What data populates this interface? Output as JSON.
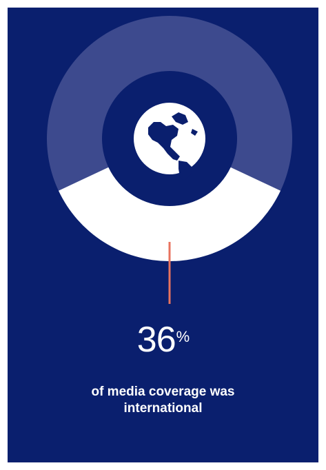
{
  "colors": {
    "background": "#0a1f6e",
    "track": "#3d4a8e",
    "highlight": "#ffffff",
    "indicator": "#e8735f",
    "globe": "#ffffff"
  },
  "icon": "globe-americas-icon",
  "stat": {
    "value": "36",
    "unit": "%",
    "caption_line1": "of media coverage was",
    "caption_line2": "international"
  },
  "chart_data": {
    "type": "pie",
    "variant": "donut",
    "values": [
      36,
      64
    ],
    "categories": [
      "international",
      ""
    ],
    "highlight_index": 0
  }
}
